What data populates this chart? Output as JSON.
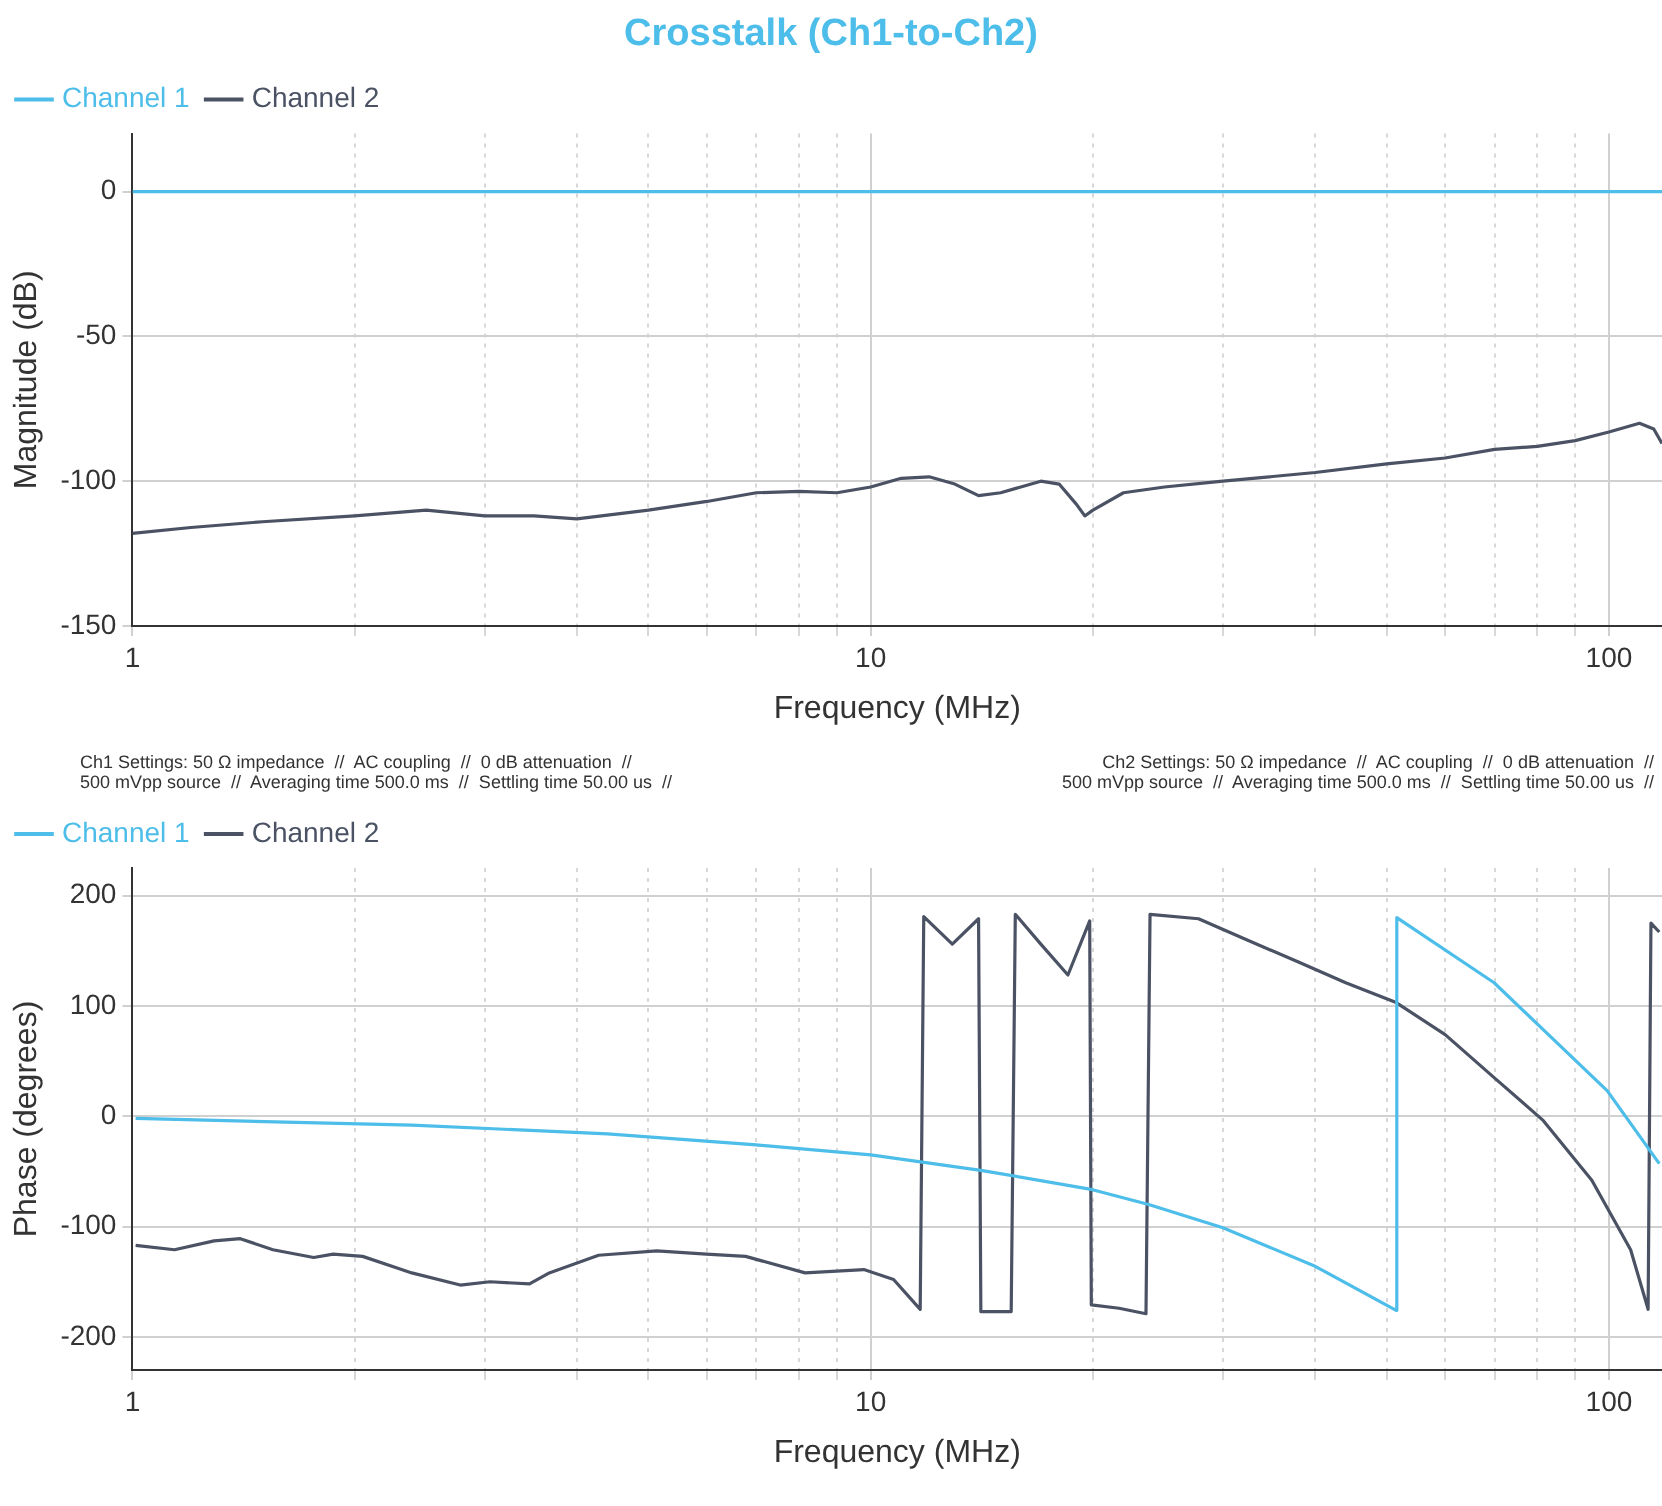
{
  "chart_data": [
    {
      "type": "line",
      "title": "Crosstalk (Ch1-to-Ch2)",
      "xlabel": "Frequency (MHz)",
      "ylabel": "Magnitude (dB)",
      "log": "x",
      "xlim": [
        1,
        118
      ],
      "xticks": [
        1,
        {
          "value": 2,
          "label": null
        },
        {
          "value": 3,
          "label": null
        },
        {
          "value": 4,
          "label": null
        },
        {
          "value": 5,
          "label": null
        },
        {
          "value": 6,
          "label": null
        },
        {
          "value": 7,
          "label": null
        },
        {
          "value": 8,
          "label": null
        },
        {
          "value": 9,
          "label": null
        },
        10,
        {
          "value": 20,
          "label": null
        },
        {
          "value": 30,
          "label": null
        },
        {
          "value": 40,
          "label": null
        },
        {
          "value": 50,
          "label": null
        },
        {
          "value": 60,
          "label": null
        },
        {
          "value": 70,
          "label": null
        },
        {
          "value": 80,
          "label": null
        },
        {
          "value": 90,
          "label": null
        },
        100
      ],
      "ylim": [
        -150,
        20
      ],
      "yticks": [
        -150,
        -100,
        -50,
        0
      ],
      "grid": true,
      "legend": "top left",
      "marker": "none",
      "line_style": "solid",
      "series": [
        {
          "name": "Channel 1",
          "color": "#4dbde9",
          "x": [
            1,
            10,
            100,
            118
          ],
          "values": [
            0,
            0,
            0,
            0
          ]
        },
        {
          "name": "Channel 2",
          "color": "#4a5264",
          "x": [
            1,
            1.2,
            1.5,
            2,
            2.5,
            3,
            3.5,
            4,
            5,
            6,
            7,
            8,
            9,
            10,
            11,
            12,
            13,
            14,
            15,
            17,
            18,
            19,
            19.5,
            20,
            22,
            25,
            30,
            40,
            50,
            60,
            70,
            80,
            90,
            100,
            110,
            115,
            118
          ],
          "values": [
            -118,
            -116,
            -114,
            -112,
            -110,
            -112,
            -112,
            -113,
            -110,
            -107,
            -104,
            -103.5,
            -104,
            -102,
            -99,
            -98.5,
            -101,
            -105,
            -104,
            -100,
            -101,
            -108,
            -112,
            -110,
            -104,
            -102,
            -100,
            -97,
            -94,
            -92,
            -89,
            -88,
            -86,
            -83,
            -80,
            -82,
            -87
          ]
        }
      ]
    },
    {
      "type": "line",
      "xlabel": "Frequency (MHz)",
      "ylabel": "Phase (degrees)",
      "log": "x",
      "xlim": [
        1,
        118
      ],
      "xticks": [
        1,
        {
          "value": 2,
          "label": null
        },
        {
          "value": 3,
          "label": null
        },
        {
          "value": 4,
          "label": null
        },
        {
          "value": 5,
          "label": null
        },
        {
          "value": 6,
          "label": null
        },
        {
          "value": 7,
          "label": null
        },
        {
          "value": 8,
          "label": null
        },
        {
          "value": 9,
          "label": null
        },
        10,
        {
          "value": 20,
          "label": null
        },
        {
          "value": 30,
          "label": null
        },
        {
          "value": 40,
          "label": null
        },
        {
          "value": 50,
          "label": null
        },
        {
          "value": 60,
          "label": null
        },
        {
          "value": 70,
          "label": null
        },
        {
          "value": 80,
          "label": null
        },
        {
          "value": 90,
          "label": null
        },
        100
      ],
      "ylim": [
        -230,
        225
      ],
      "yticks": [
        -200,
        -100,
        0,
        100,
        200
      ],
      "grid": true,
      "legend": "top left",
      "marker": "none",
      "line_style": "solid",
      "annotations": [
        "Ch1 Settings: 50 Ω impedance  //  AC coupling  //  0 dB attenuation  //\n500 mVpp source  //  Averaging time 500.0 ms  //  Settling time 50.00 us  //",
        "Ch2 Settings: 50 Ω impedance  //  AC coupling  //  0 dB attenuation  //\n500 mVpp source  //  Averaging time 500.0 ms  //  Settling time 50.00 us  //"
      ],
      "series": [
        {
          "name": "Channel 1",
          "color": "#4dbde9",
          "x": [
            1.01,
            2.39,
            4.4,
            7,
            10,
            14.1,
            19.8,
            23.8,
            30,
            40,
            51.5,
            51.6,
            69.9,
            99.5,
            117
          ],
          "values": [
            -2,
            -8,
            -16,
            -26,
            -35,
            -49,
            -66,
            -80,
            -101,
            -136,
            -176,
            180,
            121,
            23,
            -43
          ]
        },
        {
          "name": "Channel 2",
          "color": "#4a5264",
          "x": [
            1.01,
            1.14,
            1.29,
            1.4,
            1.55,
            1.76,
            1.87,
            2.05,
            2.39,
            2.78,
            3.05,
            3.45,
            3.67,
            4.28,
            5.13,
            5.99,
            6.77,
            8.15,
            9.79,
            10.74,
            11.67,
            11.8,
            12.9,
            14.0,
            14.1,
            15.5,
            15.7,
            17.0,
            18.5,
            19.8,
            19.9,
            21.7,
            23.6,
            23.9,
            27.8,
            32.3,
            37.9,
            44.0,
            51.5,
            60.0,
            69.9,
            81.5,
            94.8,
            107,
            113,
            114,
            117
          ],
          "values": [
            -117,
            -121,
            -113,
            -111,
            -121,
            -128,
            -125,
            -127,
            -142,
            -153,
            -150,
            -152,
            -142,
            -126,
            -122,
            -125,
            -127,
            -142,
            -139,
            -148,
            -175,
            181,
            156,
            179,
            -177,
            -177,
            183,
            156,
            128,
            177,
            -171,
            -174,
            -179,
            183,
            179,
            160,
            140,
            121,
            103,
            74,
            35,
            -4,
            -58,
            -121,
            -175,
            175,
            167
          ]
        }
      ]
    }
  ]
}
